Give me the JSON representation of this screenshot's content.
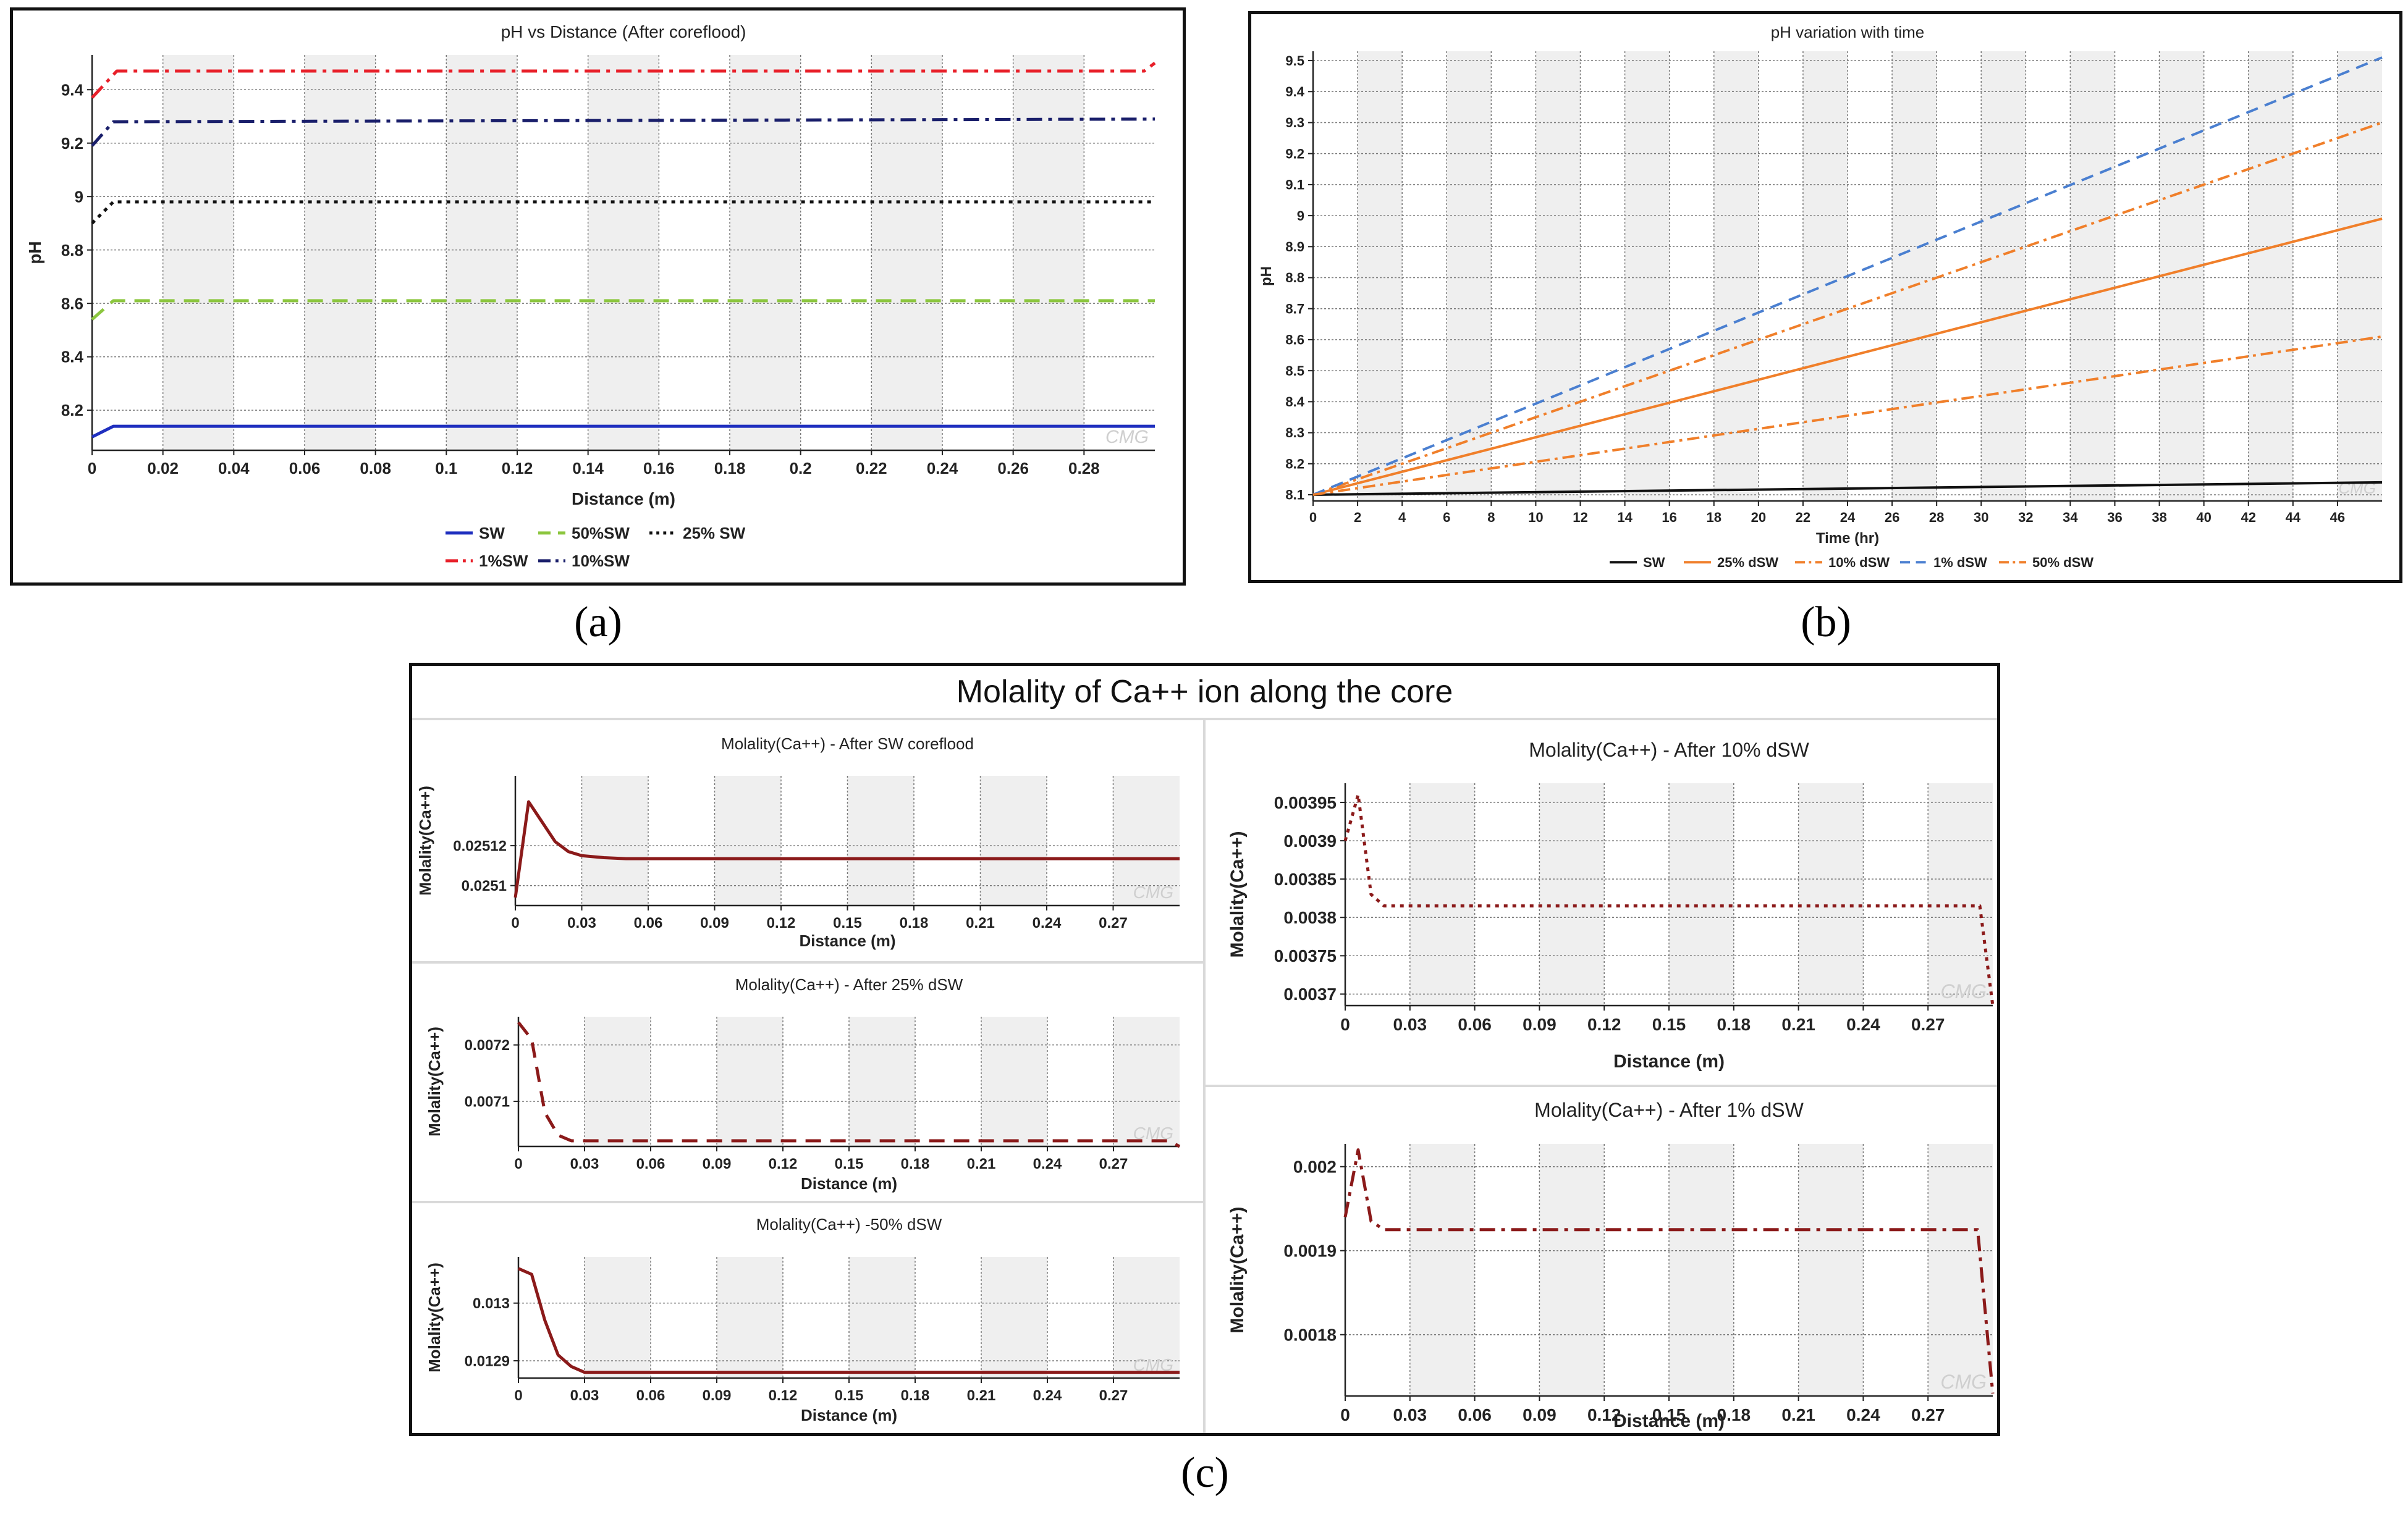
{
  "captions": {
    "a": "(a)",
    "b": "(b)",
    "c": "(c)"
  },
  "panel_c": {
    "title": "Molality of Ca++ ion along the core"
  },
  "watermark": "CMG",
  "chart_data": [
    {
      "id": "a",
      "type": "line",
      "title": "pH vs Distance (After coreflood)",
      "xlabel": "Distance (m)",
      "ylabel": "pH",
      "xlim": [
        0,
        0.3
      ],
      "ylim": [
        8.05,
        9.53
      ],
      "xticks": [
        0,
        0.02,
        0.04,
        0.06,
        0.08,
        0.1,
        0.12,
        0.14,
        0.16,
        0.18,
        0.2,
        0.22,
        0.24,
        0.26,
        0.28
      ],
      "xtick_labels": [
        "0",
        "0.02",
        "0.04",
        "0.06",
        "0.08",
        "0.1",
        "0.12",
        "0.14",
        "0.16",
        "0.18",
        "0.2",
        "0.22",
        "0.24",
        "0.26",
        "0.28"
      ],
      "yticks": [
        8.2,
        8.4,
        8.6,
        8.8,
        9,
        9.2,
        9.4
      ],
      "ytick_labels": [
        "8.2",
        "8.4",
        "8.6",
        "8.8",
        "9",
        "9.2",
        "9.4"
      ],
      "legend": "bottom",
      "series": [
        {
          "name": "SW",
          "color": "#1f2fbf",
          "dash": "solid",
          "x": [
            0,
            0.006,
            0.3
          ],
          "y": [
            8.1,
            8.14,
            8.14
          ]
        },
        {
          "name": "50%SW",
          "color": "#8cc63f",
          "dash": "dash",
          "x": [
            0,
            0.006,
            0.3
          ],
          "y": [
            8.54,
            8.61,
            8.61
          ]
        },
        {
          "name": "25% SW",
          "color": "#111111",
          "dash": "dot",
          "x": [
            0,
            0.006,
            0.3
          ],
          "y": [
            8.9,
            8.98,
            8.98
          ]
        },
        {
          "name": "1%SW",
          "color": "#e8202a",
          "dash": "dashdot",
          "x": [
            0,
            0.007,
            0.297,
            0.3
          ],
          "y": [
            9.37,
            9.47,
            9.47,
            9.5
          ]
        },
        {
          "name": "10%SW",
          "color": "#1a1f6b",
          "dash": "dashdot",
          "x": [
            0,
            0.006,
            0.3
          ],
          "y": [
            9.19,
            9.28,
            9.29
          ]
        }
      ]
    },
    {
      "id": "b",
      "type": "line",
      "title": "pH variation with time",
      "xlabel": "Time (hr)",
      "ylabel": "pH",
      "xlim": [
        0,
        48
      ],
      "ylim": [
        8.08,
        9.53
      ],
      "xticks": [
        0,
        2,
        4,
        6,
        8,
        10,
        12,
        14,
        16,
        18,
        20,
        22,
        24,
        26,
        28,
        30,
        32,
        34,
        36,
        38,
        40,
        42,
        44,
        46
      ],
      "xtick_labels": [
        "0",
        "2",
        "4",
        "6",
        "8",
        "10",
        "12",
        "14",
        "16",
        "18",
        "20",
        "22",
        "24",
        "26",
        "28",
        "30",
        "32",
        "34",
        "36",
        "38",
        "40",
        "42",
        "44",
        "46"
      ],
      "yticks": [
        8.1,
        8.2,
        8.3,
        8.4,
        8.5,
        8.6,
        8.7,
        8.8,
        8.9,
        9,
        9.1,
        9.2,
        9.3,
        9.4,
        9.5
      ],
      "ytick_labels": [
        "8.1",
        "8.2",
        "8.3",
        "8.4",
        "8.5",
        "8.6",
        "8.7",
        "8.8",
        "8.9",
        "9",
        "9.1",
        "9.2",
        "9.3",
        "9.4",
        "9.5"
      ],
      "legend": "bottom",
      "series": [
        {
          "name": "SW",
          "color": "#111111",
          "dash": "solid",
          "x": [
            0,
            48
          ],
          "y": [
            8.1,
            8.14
          ]
        },
        {
          "name": "25% dSW",
          "color": "#f07f2a",
          "dash": "solid",
          "x": [
            0,
            48
          ],
          "y": [
            8.1,
            8.99
          ]
        },
        {
          "name": "10% dSW",
          "color": "#f07f2a",
          "dash": "dashdot",
          "x": [
            0,
            48
          ],
          "y": [
            8.1,
            9.3
          ]
        },
        {
          "name": "1% dSW",
          "color": "#4a7fd0",
          "dash": "dash",
          "x": [
            0,
            48
          ],
          "y": [
            8.1,
            9.51
          ]
        },
        {
          "name": "50% dSW",
          "color": "#f07f2a",
          "dash": "dashdot",
          "x": [
            0,
            48
          ],
          "y": [
            8.1,
            8.61
          ]
        }
      ]
    },
    {
      "id": "c1",
      "type": "line",
      "title": "Molality(Ca++) - After SW coreflood",
      "xlabel": "Distance (m)",
      "ylabel": "Molality(Ca++)",
      "xlim": [
        0,
        0.3
      ],
      "ylim": [
        0.02509,
        0.025155
      ],
      "xticks": [
        0,
        0.03,
        0.06,
        0.09,
        0.12,
        0.15,
        0.18,
        0.21,
        0.24,
        0.27
      ],
      "xtick_labels": [
        "0",
        "0.03",
        "0.06",
        "0.09",
        "0.12",
        "0.15",
        "0.18",
        "0.21",
        "0.24",
        "0.27"
      ],
      "yticks": [
        0.0251,
        0.02512
      ],
      "ytick_labels": [
        "0.0251",
        "0.02512"
      ],
      "series": [
        {
          "name": "SW",
          "color": "#8b1a1a",
          "dash": "solid",
          "x": [
            0,
            0.006,
            0.012,
            0.018,
            0.024,
            0.03,
            0.04,
            0.05,
            0.3
          ],
          "y": [
            0.025094,
            0.025142,
            0.025132,
            0.025122,
            0.025117,
            0.025115,
            0.025114,
            0.0251135,
            0.0251135
          ]
        }
      ]
    },
    {
      "id": "c2",
      "type": "line",
      "title": "Molality(Ca++) - After 25% dSW",
      "xlabel": "Distance (m)",
      "ylabel": "Molality(Ca++)",
      "xlim": [
        0,
        0.3
      ],
      "ylim": [
        0.00702,
        0.00725
      ],
      "xticks": [
        0,
        0.03,
        0.06,
        0.09,
        0.12,
        0.15,
        0.18,
        0.21,
        0.24,
        0.27
      ],
      "xtick_labels": [
        "0",
        "0.03",
        "0.06",
        "0.09",
        "0.12",
        "0.15",
        "0.18",
        "0.21",
        "0.24",
        "0.27"
      ],
      "yticks": [
        0.0071,
        0.0072
      ],
      "ytick_labels": [
        "0.0071",
        "0.0072"
      ],
      "series": [
        {
          "name": "25% dSW",
          "color": "#8b1a1a",
          "dash": "dash",
          "x": [
            0,
            0.006,
            0.012,
            0.018,
            0.024,
            0.03,
            0.295,
            0.3
          ],
          "y": [
            0.00724,
            0.00721,
            0.00708,
            0.00704,
            0.00703,
            0.00703,
            0.00703,
            0.00702
          ]
        }
      ]
    },
    {
      "id": "c3",
      "type": "line",
      "title": "Molality(Ca++) -50% dSW",
      "xlabel": "Distance (m)",
      "ylabel": "Molality(Ca++)",
      "xlim": [
        0,
        0.3
      ],
      "ylim": [
        0.01287,
        0.01308
      ],
      "xticks": [
        0,
        0.03,
        0.06,
        0.09,
        0.12,
        0.15,
        0.18,
        0.21,
        0.24,
        0.27
      ],
      "xtick_labels": [
        "0",
        "0.03",
        "0.06",
        "0.09",
        "0.12",
        "0.15",
        "0.18",
        "0.21",
        "0.24",
        "0.27"
      ],
      "yticks": [
        0.0129,
        0.013
      ],
      "ytick_labels": [
        "0.0129",
        "0.013"
      ],
      "series": [
        {
          "name": "50% dSW",
          "color": "#8b1a1a",
          "dash": "solid",
          "x": [
            0,
            0.006,
            0.012,
            0.018,
            0.024,
            0.03,
            0.3
          ],
          "y": [
            0.01306,
            0.01305,
            0.01297,
            0.01291,
            0.01289,
            0.01288,
            0.01288
          ]
        }
      ]
    },
    {
      "id": "c4",
      "type": "line",
      "title": "Molality(Ca++) - After 10% dSW",
      "xlabel": "Distance (m)",
      "ylabel": "Molality(Ca++)",
      "xlim": [
        0,
        0.3
      ],
      "ylim": [
        0.003685,
        0.003975
      ],
      "xticks": [
        0,
        0.03,
        0.06,
        0.09,
        0.12,
        0.15,
        0.18,
        0.21,
        0.24,
        0.27
      ],
      "xtick_labels": [
        "0",
        "0.03",
        "0.06",
        "0.09",
        "0.12",
        "0.15",
        "0.18",
        "0.21",
        "0.24",
        "0.27"
      ],
      "yticks": [
        0.0037,
        0.00375,
        0.0038,
        0.00385,
        0.0039,
        0.00395
      ],
      "ytick_labels": [
        "0.0037",
        "0.00375",
        "0.0038",
        "0.00385",
        "0.0039",
        "0.00395"
      ],
      "series": [
        {
          "name": "10% dSW",
          "color": "#8b1a1a",
          "dash": "dot",
          "x": [
            0,
            0.006,
            0.012,
            0.018,
            0.024,
            0.294,
            0.3
          ],
          "y": [
            0.0039,
            0.00396,
            0.00383,
            0.003815,
            0.003815,
            0.003815,
            0.003685
          ]
        }
      ]
    },
    {
      "id": "c5",
      "type": "line",
      "title": "Molality(Ca++) - After 1% dSW",
      "xlabel": "Distance (m)",
      "ylabel": "Molality(Ca++)",
      "xlim": [
        0,
        0.3
      ],
      "ylim": [
        0.001727,
        0.002027
      ],
      "xticks": [
        0,
        0.03,
        0.06,
        0.09,
        0.12,
        0.15,
        0.18,
        0.21,
        0.24,
        0.27
      ],
      "xtick_labels": [
        "0",
        "0.03",
        "0.06",
        "0.09",
        "0.12",
        "0.15",
        "0.18",
        "0.21",
        "0.24",
        "0.27"
      ],
      "yticks": [
        0.0018,
        0.0019,
        0.002
      ],
      "ytick_labels": [
        "0.0018",
        "0.0019",
        "0.002"
      ],
      "series": [
        {
          "name": "1% dSW",
          "color": "#8b1a1a",
          "dash": "dashdot",
          "x": [
            0,
            0.006,
            0.012,
            0.018,
            0.293,
            0.3
          ],
          "y": [
            0.00194,
            0.00202,
            0.001935,
            0.001925,
            0.001925,
            0.00173
          ]
        }
      ]
    }
  ]
}
